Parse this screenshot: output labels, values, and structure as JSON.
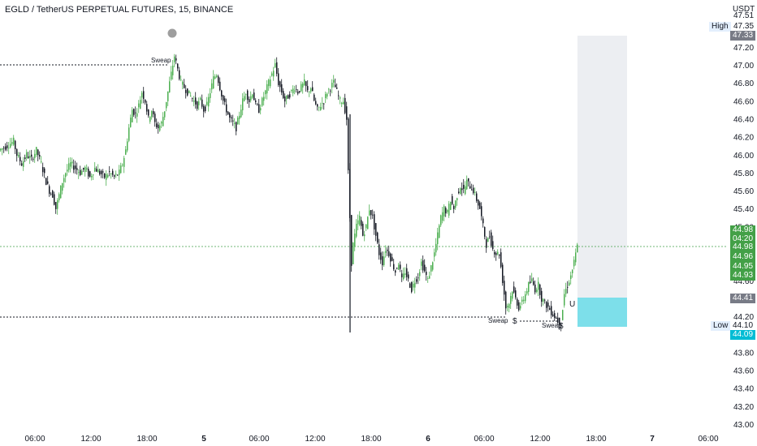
{
  "header": {
    "title": "EGLD / TetherUS PERPETUAL FUTURES, 15, BINANCE",
    "currency": "USDT"
  },
  "colors": {
    "up": "#26a69a",
    "up_candle": "#4caf50",
    "down": "#131722",
    "grid_line": "#b2b5be",
    "last_price": "#43a047",
    "target_zone": "#eceef2",
    "entry_zone": "#7ddfea",
    "marker": "#9e9e9e"
  },
  "annotations": {
    "sweap_top": "Sweap",
    "sweap_bottom_left": "Sweap",
    "sweap_bottom_right": "Sweap",
    "dollar_1": "$",
    "dollar_2": "$",
    "u_marker": "U"
  },
  "price_axis": {
    "ticks": [
      "47.51",
      "47.35",
      "47.20",
      "47.00",
      "46.80",
      "46.60",
      "46.40",
      "46.20",
      "46.00",
      "45.80",
      "45.60",
      "45.40",
      "45.20",
      "45.00",
      "44.80",
      "44.60",
      "44.40",
      "44.20",
      "44.00",
      "43.80",
      "43.60",
      "43.40",
      "43.20",
      "43.00"
    ],
    "high_label": "High",
    "high_value": "47.33",
    "low_label": "Low",
    "low_value": "44.10",
    "low_marker": "44.09",
    "last_price": "44.98",
    "countdown": "04:20",
    "last_price_2": "44.98",
    "bid_1": "44.96",
    "bid_2": "44.95",
    "bid_3": "44.93",
    "level_gray": "44.41"
  },
  "time_axis": {
    "labels": [
      "06:00",
      "12:00",
      "18:00",
      "5",
      "06:00",
      "12:00",
      "18:00",
      "6",
      "06:00",
      "12:00",
      "18:00",
      "7",
      "06:00"
    ]
  },
  "chart_data": {
    "type": "candlestick",
    "symbol": "EGLD / TetherUS PERPETUAL FUTURES",
    "interval": "15",
    "exchange": "BINANCE",
    "ylim": [
      43.0,
      47.6
    ],
    "y_ticks": [
      43.0,
      43.2,
      43.4,
      43.6,
      43.8,
      44.0,
      44.2,
      44.4,
      44.6,
      44.8,
      45.0,
      45.2,
      45.4,
      45.6,
      45.8,
      46.0,
      46.2,
      46.4,
      46.6,
      46.8,
      47.0,
      47.2,
      47.35
    ],
    "x_labels": [
      "06:00",
      "12:00",
      "18:00",
      "5",
      "06:00",
      "12:00",
      "18:00",
      "6",
      "06:00",
      "12:00",
      "18:00",
      "7",
      "06:00"
    ],
    "session_high": 47.33,
    "session_low": 44.1,
    "last_close": 44.98,
    "sweep_levels": [
      47.0,
      44.21
    ],
    "close_path": [
      [
        0,
        46.05
      ],
      [
        10,
        46.1
      ],
      [
        18,
        46.15
      ],
      [
        22,
        46.0
      ],
      [
        28,
        45.9
      ],
      [
        34,
        46.0
      ],
      [
        40,
        45.95
      ],
      [
        46,
        46.05
      ],
      [
        52,
        45.9
      ],
      [
        58,
        45.7
      ],
      [
        62,
        45.6
      ],
      [
        66,
        45.55
      ],
      [
        70,
        45.4
      ],
      [
        74,
        45.55
      ],
      [
        78,
        45.7
      ],
      [
        82,
        45.8
      ],
      [
        88,
        45.9
      ],
      [
        94,
        45.85
      ],
      [
        100,
        45.8
      ],
      [
        106,
        45.85
      ],
      [
        112,
        45.75
      ],
      [
        118,
        45.85
      ],
      [
        124,
        45.8
      ],
      [
        130,
        45.75
      ],
      [
        136,
        45.8
      ],
      [
        142,
        45.75
      ],
      [
        148,
        45.8
      ],
      [
        152,
        45.9
      ],
      [
        156,
        46.05
      ],
      [
        160,
        46.3
      ],
      [
        164,
        46.5
      ],
      [
        168,
        46.45
      ],
      [
        172,
        46.55
      ],
      [
        176,
        46.7
      ],
      [
        180,
        46.6
      ],
      [
        184,
        46.4
      ],
      [
        188,
        46.5
      ],
      [
        192,
        46.35
      ],
      [
        196,
        46.3
      ],
      [
        200,
        46.35
      ],
      [
        204,
        46.5
      ],
      [
        208,
        46.7
      ],
      [
        212,
        46.9
      ],
      [
        216,
        47.1
      ],
      [
        220,
        46.95
      ],
      [
        224,
        46.8
      ],
      [
        228,
        46.75
      ],
      [
        232,
        46.7
      ],
      [
        236,
        46.65
      ],
      [
        240,
        46.6
      ],
      [
        244,
        46.55
      ],
      [
        248,
        46.6
      ],
      [
        252,
        46.5
      ],
      [
        256,
        46.55
      ],
      [
        260,
        46.7
      ],
      [
        264,
        46.85
      ],
      [
        268,
        46.9
      ],
      [
        272,
        46.75
      ],
      [
        276,
        46.6
      ],
      [
        280,
        46.5
      ],
      [
        284,
        46.4
      ],
      [
        288,
        46.35
      ],
      [
        292,
        46.3
      ],
      [
        296,
        46.45
      ],
      [
        300,
        46.6
      ],
      [
        304,
        46.7
      ],
      [
        308,
        46.6
      ],
      [
        312,
        46.7
      ],
      [
        316,
        46.55
      ],
      [
        320,
        46.5
      ],
      [
        324,
        46.6
      ],
      [
        328,
        46.7
      ],
      [
        332,
        46.8
      ],
      [
        336,
        46.9
      ],
      [
        340,
        47.0
      ],
      [
        344,
        46.8
      ],
      [
        348,
        46.7
      ],
      [
        352,
        46.6
      ],
      [
        356,
        46.65
      ],
      [
        360,
        46.7
      ],
      [
        364,
        46.75
      ],
      [
        368,
        46.7
      ],
      [
        372,
        46.75
      ],
      [
        376,
        46.8
      ],
      [
        380,
        46.7
      ],
      [
        384,
        46.75
      ],
      [
        388,
        46.6
      ],
      [
        392,
        46.5
      ],
      [
        396,
        46.55
      ],
      [
        400,
        46.6
      ],
      [
        404,
        46.7
      ],
      [
        408,
        46.75
      ],
      [
        412,
        46.8
      ],
      [
        416,
        46.7
      ],
      [
        420,
        46.6
      ],
      [
        424,
        46.6
      ],
      [
        428,
        46.4
      ],
      [
        430,
        45.8
      ],
      [
        432,
        45.3
      ],
      [
        434,
        44.8
      ],
      [
        436,
        45.0
      ],
      [
        440,
        45.2
      ],
      [
        444,
        45.3
      ],
      [
        448,
        45.1
      ],
      [
        452,
        45.2
      ],
      [
        456,
        45.4
      ],
      [
        460,
        45.3
      ],
      [
        464,
        45.1
      ],
      [
        468,
        44.9
      ],
      [
        472,
        44.8
      ],
      [
        476,
        44.95
      ],
      [
        480,
        44.9
      ],
      [
        484,
        44.8
      ],
      [
        488,
        44.7
      ],
      [
        492,
        44.8
      ],
      [
        496,
        44.6
      ],
      [
        500,
        44.7
      ],
      [
        504,
        44.6
      ],
      [
        508,
        44.5
      ],
      [
        512,
        44.6
      ],
      [
        516,
        44.65
      ],
      [
        520,
        44.8
      ],
      [
        524,
        44.7
      ],
      [
        528,
        44.6
      ],
      [
        532,
        44.75
      ],
      [
        536,
        44.9
      ],
      [
        540,
        45.1
      ],
      [
        544,
        45.3
      ],
      [
        548,
        45.4
      ],
      [
        552,
        45.35
      ],
      [
        556,
        45.5
      ],
      [
        560,
        45.4
      ],
      [
        564,
        45.55
      ],
      [
        568,
        45.65
      ],
      [
        572,
        45.6
      ],
      [
        576,
        45.7
      ],
      [
        580,
        45.65
      ],
      [
        584,
        45.6
      ],
      [
        588,
        45.5
      ],
      [
        592,
        45.4
      ],
      [
        596,
        45.2
      ],
      [
        600,
        45.0
      ],
      [
        604,
        45.1
      ],
      [
        608,
        44.95
      ],
      [
        612,
        44.9
      ],
      [
        616,
        44.9
      ],
      [
        620,
        44.6
      ],
      [
        624,
        44.3
      ],
      [
        628,
        44.35
      ],
      [
        632,
        44.5
      ],
      [
        636,
        44.4
      ],
      [
        640,
        44.3
      ],
      [
        644,
        44.35
      ],
      [
        648,
        44.45
      ],
      [
        652,
        44.55
      ],
      [
        656,
        44.6
      ],
      [
        660,
        44.5
      ],
      [
        664,
        44.55
      ],
      [
        668,
        44.4
      ],
      [
        672,
        44.35
      ],
      [
        676,
        44.3
      ],
      [
        680,
        44.25
      ],
      [
        684,
        44.2
      ],
      [
        688,
        44.15
      ],
      [
        692,
        44.12
      ],
      [
        696,
        44.45
      ],
      [
        700,
        44.55
      ],
      [
        704,
        44.65
      ],
      [
        708,
        44.8
      ],
      [
        712,
        44.98
      ]
    ]
  }
}
